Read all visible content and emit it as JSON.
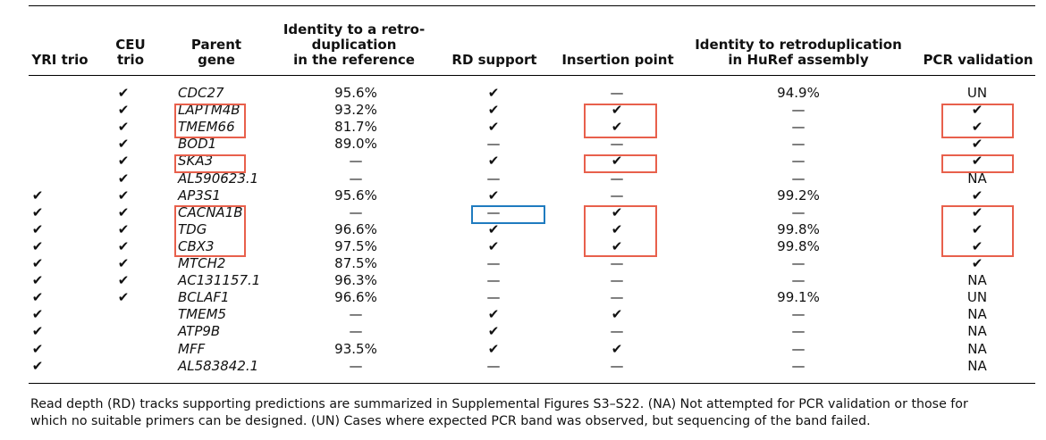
{
  "headers": [
    {
      "lines": [
        "YRI trio"
      ]
    },
    {
      "lines": [
        "CEU",
        "trio"
      ]
    },
    {
      "lines": [
        "Parent",
        "gene"
      ]
    },
    {
      "lines": [
        "Identity to a retro-",
        "duplication",
        "in the reference"
      ]
    },
    {
      "lines": [
        "RD support"
      ]
    },
    {
      "lines": [
        "Insertion point"
      ]
    },
    {
      "lines": [
        "Identity to retroduplication",
        "in HuRef assembly"
      ]
    },
    {
      "lines": [
        "PCR validation"
      ]
    }
  ],
  "symbols": {
    "check": "✔",
    "dash": "—"
  },
  "rows": [
    {
      "yri": "",
      "ceu": "✔",
      "gene": "CDC27",
      "identity_ref": "95.6%",
      "rd": "✔",
      "insertion": "—",
      "identity_huref": "94.9%",
      "pcr": "UN"
    },
    {
      "yri": "",
      "ceu": "✔",
      "gene": "LAPTM4B",
      "identity_ref": "93.2%",
      "rd": "✔",
      "insertion": "✔",
      "identity_huref": "—",
      "pcr": "✔"
    },
    {
      "yri": "",
      "ceu": "✔",
      "gene": "TMEM66",
      "identity_ref": "81.7%",
      "rd": "✔",
      "insertion": "✔",
      "identity_huref": "—",
      "pcr": "✔"
    },
    {
      "yri": "",
      "ceu": "✔",
      "gene": "BOD1",
      "identity_ref": "89.0%",
      "rd": "—",
      "insertion": "—",
      "identity_huref": "—",
      "pcr": "✔"
    },
    {
      "yri": "",
      "ceu": "✔",
      "gene": "SKA3",
      "identity_ref": "—",
      "rd": "✔",
      "insertion": "✔",
      "identity_huref": "—",
      "pcr": "✔"
    },
    {
      "yri": "",
      "ceu": "✔",
      "gene": "AL590623.1",
      "identity_ref": "—",
      "rd": "—",
      "insertion": "—",
      "identity_huref": "—",
      "pcr": "NA"
    },
    {
      "yri": "✔",
      "ceu": "✔",
      "gene": "AP3S1",
      "identity_ref": "95.6%",
      "rd": "✔",
      "insertion": "—",
      "identity_huref": "99.2%",
      "pcr": "✔"
    },
    {
      "yri": "✔",
      "ceu": "✔",
      "gene": "CACNA1B",
      "identity_ref": "—",
      "rd": "—",
      "insertion": "✔",
      "identity_huref": "—",
      "pcr": "✔"
    },
    {
      "yri": "✔",
      "ceu": "✔",
      "gene": "TDG",
      "identity_ref": "96.6%",
      "rd": "✔",
      "insertion": "✔",
      "identity_huref": "99.8%",
      "pcr": "✔"
    },
    {
      "yri": "✔",
      "ceu": "✔",
      "gene": "CBX3",
      "identity_ref": "97.5%",
      "rd": "✔",
      "insertion": "✔",
      "identity_huref": "99.8%",
      "pcr": "✔"
    },
    {
      "yri": "✔",
      "ceu": "✔",
      "gene": "MTCH2",
      "identity_ref": "87.5%",
      "rd": "—",
      "insertion": "—",
      "identity_huref": "—",
      "pcr": "✔"
    },
    {
      "yri": "✔",
      "ceu": "✔",
      "gene": "AC131157.1",
      "identity_ref": "96.3%",
      "rd": "—",
      "insertion": "—",
      "identity_huref": "—",
      "pcr": "NA"
    },
    {
      "yri": "✔",
      "ceu": "✔",
      "gene": "BCLAF1",
      "identity_ref": "96.6%",
      "rd": "—",
      "insertion": "—",
      "identity_huref": "99.1%",
      "pcr": "UN"
    },
    {
      "yri": "✔",
      "ceu": "",
      "gene": "TMEM5",
      "identity_ref": "—",
      "rd": "✔",
      "insertion": "✔",
      "identity_huref": "—",
      "pcr": "NA"
    },
    {
      "yri": "✔",
      "ceu": "",
      "gene": "ATP9B",
      "identity_ref": "—",
      "rd": "✔",
      "insertion": "—",
      "identity_huref": "—",
      "pcr": "NA"
    },
    {
      "yri": "✔",
      "ceu": "",
      "gene": "MFF",
      "identity_ref": "93.5%",
      "rd": "✔",
      "insertion": "✔",
      "identity_huref": "—",
      "pcr": "NA"
    },
    {
      "yri": "✔",
      "ceu": "",
      "gene": "AL583842.1",
      "identity_ref": "—",
      "rd": "—",
      "insertion": "—",
      "identity_huref": "—",
      "pcr": "NA"
    }
  ],
  "highlight_colors": {
    "red": "#e8604c",
    "blue": "#1f7bbf"
  },
  "footnote": [
    "Read depth (RD) tracks supporting predictions are summarized in Supplemental Figures S3–S22. (NA) Not attempted for PCR validation or those for",
    "which no suitable primers can be designed. (UN) Cases where expected PCR band was observed, but sequencing of the band failed."
  ]
}
